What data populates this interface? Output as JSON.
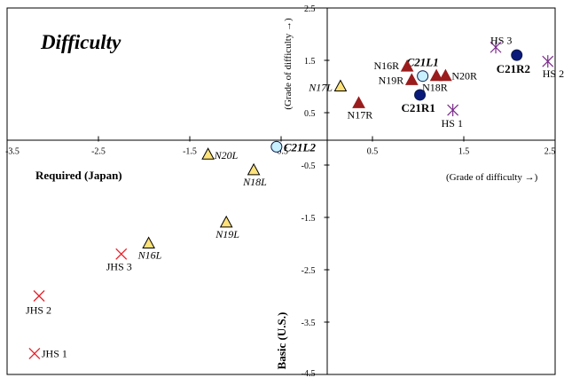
{
  "chart_data": {
    "type": "scatter",
    "title": "Difficulty",
    "xlabel": "(Grade of difficulty →)",
    "ylabel": "(Grade of difficulty →)",
    "quadrant_labels": {
      "left": "Required (Japan)",
      "bottom": "Basic (U.S.)"
    },
    "xlim": [
      -3.5,
      2.5
    ],
    "ylim": [
      -4.5,
      2.5
    ],
    "x_ticks": [
      "-3.5",
      "-2.5",
      "-1.5",
      "-0.5",
      "0.5",
      "1.5",
      "2.5"
    ],
    "y_ticks": [
      "2.5",
      "1.5",
      "0.5",
      "-0.5",
      "-1.5",
      "-2.5",
      "-3.5",
      "-4.5"
    ],
    "grid": false,
    "series": [
      {
        "marker": "red-x",
        "color": "#e8202a",
        "points": [
          {
            "label": "JHS 1",
            "x": -3.2,
            "y": -4.1
          },
          {
            "label": "JHS 2",
            "x": -3.15,
            "y": -3.0
          },
          {
            "label": "JHS 3",
            "x": -2.25,
            "y": -2.2
          }
        ]
      },
      {
        "marker": "yellow-triangle",
        "color": "#ffe27a",
        "points": [
          {
            "label": "N16L",
            "x": -1.95,
            "y": -2.0
          },
          {
            "label": "N19L",
            "x": -1.1,
            "y": -1.6
          },
          {
            "label": "N18L",
            "x": -0.8,
            "y": -0.6
          },
          {
            "label": "N20L",
            "x": -1.3,
            "y": -0.3
          },
          {
            "label": "N17L",
            "x": 0.15,
            "y": 1.0
          }
        ]
      },
      {
        "marker": "light-blue-circle",
        "color": "#c8f0ff",
        "points": [
          {
            "label": "C21L2",
            "x": -0.55,
            "y": -0.15
          },
          {
            "label": "C21L1",
            "x": 1.05,
            "y": 1.2
          }
        ]
      },
      {
        "marker": "dark-red-triangle",
        "color": "#9b1c1c",
        "points": [
          {
            "label": "N16R",
            "x": 0.88,
            "y": 1.38
          },
          {
            "label": "N19R",
            "x": 0.93,
            "y": 1.12
          },
          {
            "label": "N18R",
            "x": 1.2,
            "y": 1.2
          },
          {
            "label": "N20R",
            "x": 1.3,
            "y": 1.2
          },
          {
            "label": "N17R",
            "x": 0.35,
            "y": 0.68
          }
        ]
      },
      {
        "marker": "navy-circle",
        "color": "#0a1a7a",
        "points": [
          {
            "label": "C21R1",
            "x": 1.02,
            "y": 0.84
          },
          {
            "label": "C21R2",
            "x": 2.08,
            "y": 1.6
          }
        ]
      },
      {
        "marker": "purple-asterisk",
        "color": "#7a2a8a",
        "points": [
          {
            "label": "HS 1",
            "x": 1.38,
            "y": 0.55
          },
          {
            "label": "HS 2",
            "x": 2.42,
            "y": 1.48
          },
          {
            "label": "HS 3",
            "x": 1.85,
            "y": 1.75
          }
        ]
      }
    ]
  }
}
